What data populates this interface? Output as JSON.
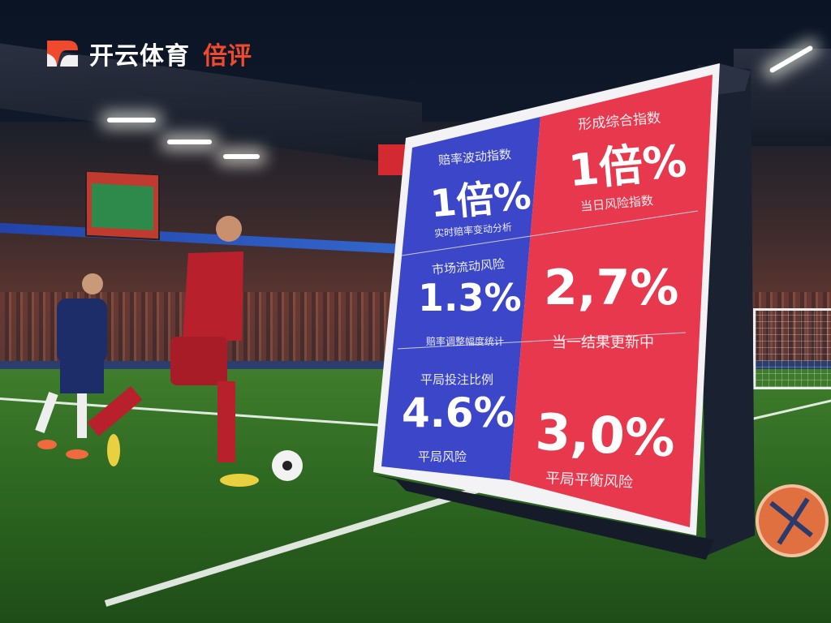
{
  "logo": {
    "brand": "开云体育",
    "accent": "倍评"
  },
  "billboard": {
    "colors": {
      "blue": "#3b46c8",
      "red": "#e8384e"
    },
    "cells": [
      {
        "heading": "赔率波动指数",
        "value": "1倍%",
        "caption": "实时赔率变动分析"
      },
      {
        "heading": "形成综合指数",
        "value": "1倍%",
        "caption": "当日风险指数"
      },
      {
        "heading": "市场流动风险",
        "value": "1.3%",
        "caption": "赔率调整幅度统计"
      },
      {
        "heading": "",
        "value": "2,7%",
        "caption": "当一结果更新中"
      },
      {
        "heading": "平局投注比例",
        "value": "4.6%",
        "caption": "平局风险"
      },
      {
        "heading": "",
        "value": "3,0%",
        "caption": "平局平衡风险"
      }
    ]
  }
}
